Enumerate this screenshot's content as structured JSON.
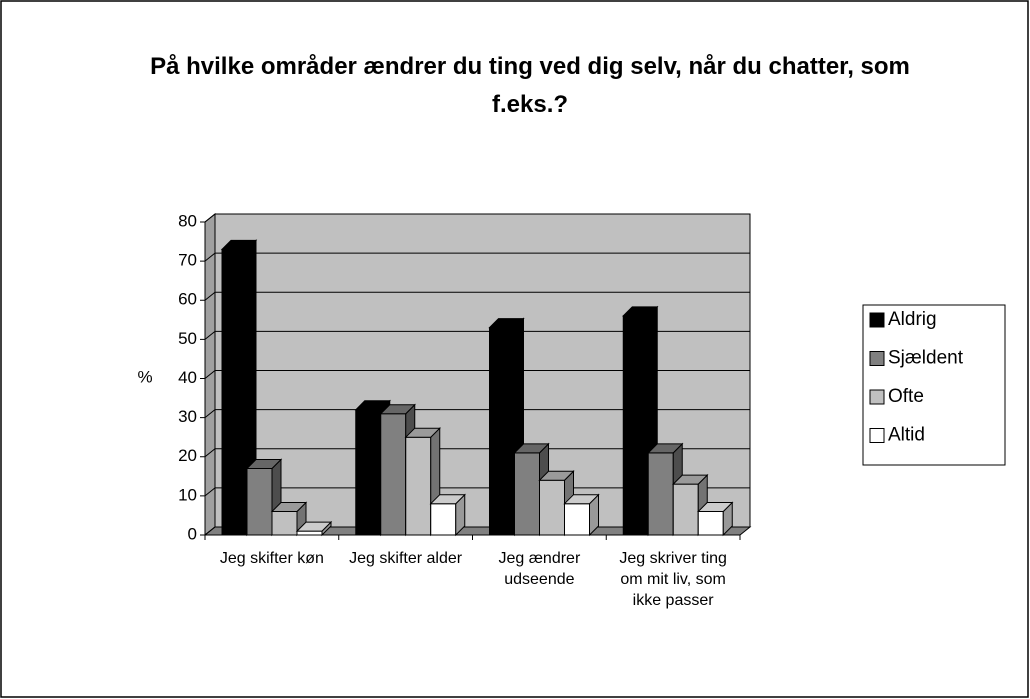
{
  "chart_data": {
    "type": "bar3d",
    "title": "På hvilke områder ændrer du ting ved dig selv, når du chatter, som f.eks.?",
    "y_label": "%",
    "categories": [
      "Jeg skifter køn",
      "Jeg skifter alder",
      "Jeg ændrer udseende",
      "Jeg skriver ting om mit liv, som ikke passer"
    ],
    "series": [
      {
        "name": "Aldrig",
        "color": "#000000",
        "values": [
          73,
          32,
          53,
          56
        ]
      },
      {
        "name": "Sjældent",
        "color": "#808080",
        "values": [
          17,
          31,
          21,
          21
        ]
      },
      {
        "name": "Ofte",
        "color": "#c0c0c0",
        "values": [
          6,
          25,
          14,
          13
        ]
      },
      {
        "name": "Altid",
        "color": "#ffffff",
        "values": [
          1,
          8,
          8,
          6
        ]
      }
    ],
    "ylim": [
      0,
      80
    ],
    "yticks": [
      0,
      10,
      20,
      30,
      40,
      50,
      60,
      70,
      80
    ],
    "grid": true,
    "legend": "right"
  }
}
